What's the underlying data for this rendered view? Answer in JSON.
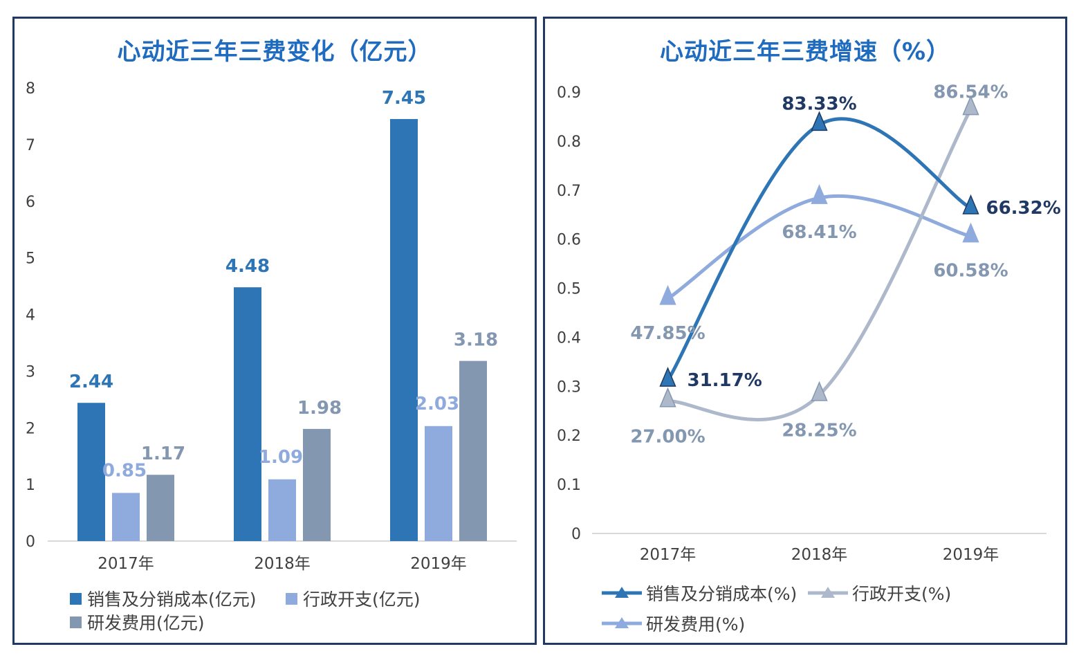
{
  "colors": {
    "sales": "#2e75b6",
    "admin": "#8faadc",
    "rd": "#8497b0",
    "growth_sales": "#2e75b6",
    "growth_admin": "#adb9ca",
    "growth_rd": "#8faadc",
    "label_dark": "#1f3864",
    "border": "#1f3864",
    "title": "#1f6bbf"
  },
  "chart_data": [
    {
      "type": "bar",
      "title": "心动近三年三费变化（亿元）",
      "categories": [
        "2017年",
        "2018年",
        "2019年"
      ],
      "ylim": [
        0,
        8
      ],
      "yticks": [
        "0",
        "1",
        "2",
        "3",
        "4",
        "5",
        "6",
        "7",
        "8"
      ],
      "grid": false,
      "legend_position": "bottom",
      "series": [
        {
          "name": "销售及分销成本(亿元)",
          "values": [
            2.44,
            4.48,
            7.45
          ],
          "labels": [
            "2.44",
            "4.48",
            "7.45"
          ]
        },
        {
          "name": "行政开支(亿元)",
          "values": [
            0.85,
            1.09,
            2.03
          ],
          "labels": [
            "0.85",
            "1.09",
            "2.03"
          ]
        },
        {
          "name": "研发费用(亿元)",
          "values": [
            1.17,
            1.98,
            3.18
          ],
          "labels": [
            "1.17",
            "1.98",
            "3.18"
          ]
        }
      ]
    },
    {
      "type": "line",
      "title": "心动近三年三费增速（%）",
      "categories": [
        "2017年",
        "2018年",
        "2019年"
      ],
      "ylim": [
        0,
        0.9
      ],
      "yticks": [
        "0",
        "0.1",
        "0.2",
        "0.3",
        "0.4",
        "0.5",
        "0.6",
        "0.7",
        "0.8",
        "0.9"
      ],
      "grid": false,
      "legend_position": "bottom",
      "series": [
        {
          "name": "销售及分销成本(%)",
          "values": [
            0.3117,
            0.8333,
            0.6632
          ],
          "labels": [
            "31.17%",
            "83.33%",
            "66.32%"
          ]
        },
        {
          "name": "行政开支(%)",
          "values": [
            0.27,
            0.2825,
            0.8654
          ],
          "labels": [
            "27.00%",
            "28.25%",
            "86.54%"
          ]
        },
        {
          "name": "研发费用(%)",
          "values": [
            0.4785,
            0.6841,
            0.6058
          ],
          "labels": [
            "47.85%",
            "68.41%",
            "60.58%"
          ]
        }
      ]
    }
  ]
}
